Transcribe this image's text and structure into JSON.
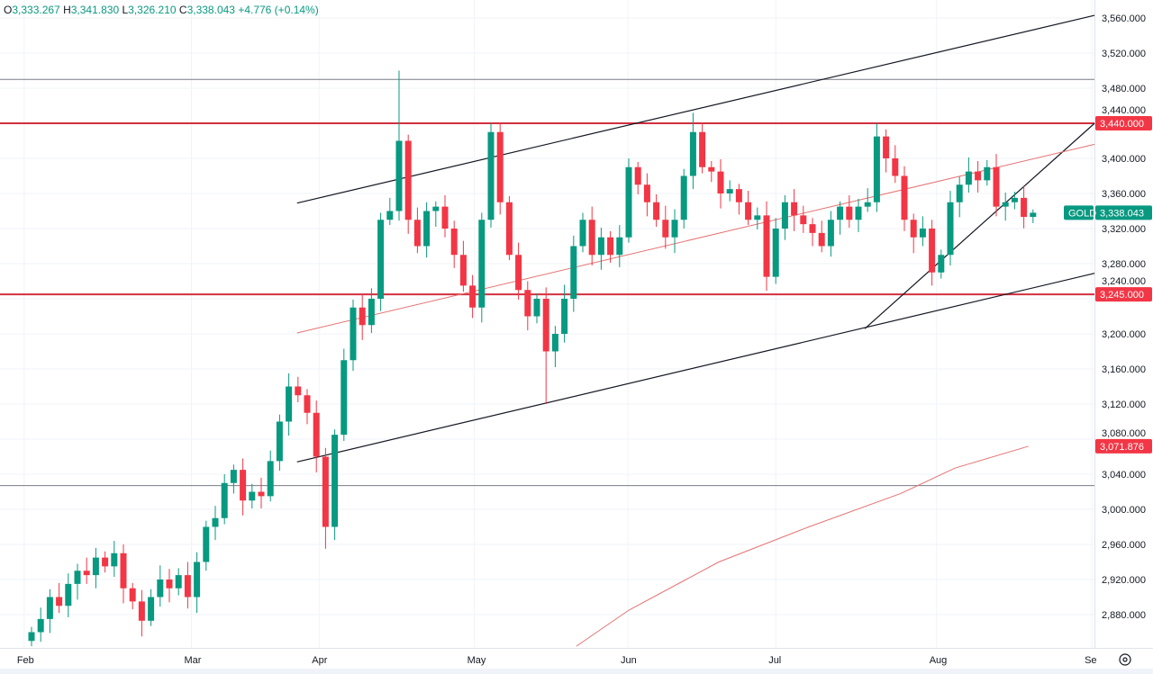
{
  "legend": {
    "o_label": "O",
    "o": "3,333.267",
    "h_label": "H",
    "h": "3,341.830",
    "l_label": "L",
    "l": "3,326.210",
    "c_label": "C",
    "c": "3,338.043",
    "change": "+4.776 (+0.14%)"
  },
  "colors": {
    "up": "#089981",
    "down": "#f23645",
    "level": "#d32f3f",
    "ma": "#e57373",
    "trend": "#131722",
    "grid": "#f0f3fa"
  },
  "chart_data": {
    "type": "candlestick",
    "symbol": "GOLD",
    "ylim": [
      2850,
      3575
    ],
    "y_ticks": [
      3560,
      3520,
      3480,
      3440,
      3400,
      3360,
      3320,
      3280,
      3240,
      3200,
      3160,
      3120,
      3080,
      3040,
      3000,
      2960,
      2920,
      2880
    ],
    "y_tick_labels": [
      "3,560.000",
      "3,520.000",
      "3,480.000",
      "3,440.000",
      "3,400.000",
      "3,360.000",
      "3,320.000",
      "3,280.000",
      "3,240.000",
      "3,200.000",
      "3,160.000",
      "3,120.000",
      "3,080.000",
      "3,040.000",
      "3,000.000",
      "2,960.000",
      "2,920.000",
      "2,880.000"
    ],
    "x_range": [
      -1,
      116.5
    ],
    "x_ticks": [
      {
        "label": "Feb",
        "index": -0.8
      },
      {
        "label": "Mar",
        "index": 17.4
      },
      {
        "label": "Apr",
        "index": 31.3
      },
      {
        "label": "May",
        "index": 48.2
      },
      {
        "label": "Jun",
        "index": 64.9
      },
      {
        "label": "Jul",
        "index": 81
      },
      {
        "label": "Aug",
        "index": 98.5
      },
      {
        "label": "Se",
        "index": 115.4
      }
    ],
    "first_open": 2850,
    "closes": [
      2860,
      2875,
      2900,
      2890,
      2915,
      2930,
      2925,
      2945,
      2935,
      2950,
      2910,
      2895,
      2873,
      2900,
      2920,
      2910,
      2925,
      2900,
      2940,
      2980,
      2990,
      3030,
      3045,
      3010,
      3020,
      3015,
      3055,
      3100,
      3140,
      3130,
      3110,
      3060,
      2980,
      3085,
      3170,
      3230,
      3210,
      3240,
      3330,
      3340,
      3420,
      3330,
      3300,
      3340,
      3345,
      3320,
      3290,
      3255,
      3230,
      3330,
      3430,
      3350,
      3290,
      3250,
      3220,
      3240,
      3180,
      3200,
      3240,
      3300,
      3330,
      3290,
      3310,
      3290,
      3310,
      3390,
      3370,
      3350,
      3330,
      3310,
      3330,
      3380,
      3430,
      3390,
      3385,
      3360,
      3365,
      3350,
      3330,
      3335,
      3265,
      3320,
      3350,
      3335,
      3325,
      3315,
      3300,
      3330,
      3345,
      3330,
      3345,
      3350,
      3425,
      3400,
      3380,
      3330,
      3310,
      3320,
      3270,
      3290,
      3350,
      3370,
      3385,
      3375,
      3390,
      3345,
      3350,
      3355,
      3333.267,
      3338.043
    ],
    "wick_overrides": [
      {
        "index": 12,
        "low": 2855
      },
      {
        "index": 32,
        "low": 2955
      },
      {
        "index": 40,
        "high": 3500
      },
      {
        "index": 50,
        "high": 3440
      },
      {
        "index": 56,
        "low": 3120
      },
      {
        "index": 72,
        "high": 3452
      },
      {
        "index": 92,
        "high": 3440
      },
      {
        "index": 109,
        "high": 3341.83,
        "low": 3326.21
      }
    ],
    "horizontal_lines": [
      {
        "price": 3490,
        "style": "gray"
      },
      {
        "price": 3440,
        "style": "red",
        "label": "3,440.000"
      },
      {
        "price": 3245,
        "style": "red",
        "label": "3,245.000"
      },
      {
        "price": 3027,
        "style": "gray"
      }
    ],
    "trend_lines": [
      {
        "name": "upper-channel",
        "points": [
          [
            28.9,
            3349
          ],
          [
            115.7,
            3563
          ]
        ],
        "style": "black"
      },
      {
        "name": "lower-channel",
        "points": [
          [
            28.9,
            3054
          ],
          [
            115.7,
            3269
          ]
        ],
        "style": "black"
      },
      {
        "name": "rising-support",
        "points": [
          [
            90.7,
            3206
          ],
          [
            115.7,
            3440
          ]
        ],
        "style": "black"
      },
      {
        "name": "mid-trend",
        "points": [
          [
            28.9,
            3201
          ],
          [
            115.7,
            3416
          ]
        ],
        "style": "red"
      }
    ],
    "moving_average": {
      "points": [
        [
          59.3,
          2844
        ],
        [
          65,
          2885
        ],
        [
          74.8,
          2940
        ],
        [
          84.6,
          2980
        ],
        [
          94.6,
          3018
        ],
        [
          100.5,
          3047
        ],
        [
          108.5,
          3071.876
        ]
      ],
      "label": "3,071.876"
    },
    "last_price": {
      "symbol": "GOLD",
      "label": "3,338.043",
      "price": 3338.043
    }
  }
}
